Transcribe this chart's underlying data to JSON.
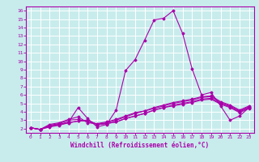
{
  "xlabel": "Windchill (Refroidissement éolien,°C)",
  "bg_color": "#c8ecec",
  "grid_color": "#ffffff",
  "line_color": "#aa00aa",
  "xlim": [
    -0.5,
    23.5
  ],
  "ylim": [
    1.5,
    16.5
  ],
  "xticks": [
    0,
    1,
    2,
    3,
    4,
    5,
    6,
    7,
    8,
    9,
    10,
    11,
    12,
    13,
    14,
    15,
    16,
    17,
    18,
    19,
    20,
    21,
    22,
    23
  ],
  "yticks": [
    2,
    3,
    4,
    5,
    6,
    7,
    8,
    9,
    10,
    11,
    12,
    13,
    14,
    15,
    16
  ],
  "lines": [
    {
      "x": [
        0,
        1,
        2,
        3,
        4,
        5,
        6,
        7,
        8,
        9,
        10,
        11,
        12,
        13,
        14,
        15,
        16,
        17,
        18,
        19,
        20,
        21,
        22,
        23
      ],
      "y": [
        2.1,
        1.9,
        2.3,
        2.5,
        2.8,
        4.5,
        3.2,
        2.2,
        2.5,
        4.2,
        8.9,
        10.2,
        12.5,
        14.9,
        15.1,
        16.0,
        13.3,
        9.1,
        6.0,
        6.3,
        4.7,
        3.0,
        3.5,
        4.5
      ]
    },
    {
      "x": [
        0,
        1,
        2,
        3,
        4,
        5,
        6,
        7,
        8,
        9,
        10,
        11,
        12,
        13,
        14,
        15,
        16,
        17,
        18,
        19,
        20,
        21,
        22,
        23
      ],
      "y": [
        2.1,
        1.9,
        2.3,
        2.5,
        2.7,
        2.9,
        3.0,
        2.5,
        2.6,
        2.8,
        3.2,
        3.5,
        3.8,
        4.2,
        4.5,
        4.8,
        5.0,
        5.2,
        5.5,
        5.6,
        5.0,
        4.6,
        4.0,
        4.5
      ]
    },
    {
      "x": [
        0,
        1,
        2,
        3,
        4,
        5,
        6,
        7,
        8,
        9,
        10,
        11,
        12,
        13,
        14,
        15,
        16,
        17,
        18,
        19,
        20,
        21,
        22,
        23
      ],
      "y": [
        2.1,
        1.9,
        2.2,
        2.4,
        2.7,
        2.9,
        3.0,
        2.5,
        2.6,
        2.8,
        3.2,
        3.5,
        3.8,
        4.2,
        4.5,
        4.7,
        4.9,
        5.1,
        5.4,
        5.5,
        4.9,
        4.5,
        3.9,
        4.4
      ]
    },
    {
      "x": [
        0,
        1,
        2,
        3,
        4,
        5,
        6,
        7,
        8,
        9,
        10,
        11,
        12,
        13,
        14,
        15,
        16,
        17,
        18,
        19,
        20,
        21,
        22,
        23
      ],
      "y": [
        2.1,
        1.9,
        2.4,
        2.6,
        3.0,
        3.1,
        2.8,
        2.5,
        2.7,
        3.0,
        3.4,
        3.8,
        4.1,
        4.4,
        4.7,
        5.0,
        5.2,
        5.4,
        5.7,
        5.8,
        5.1,
        4.7,
        4.1,
        4.6
      ]
    },
    {
      "x": [
        0,
        1,
        2,
        3,
        4,
        5,
        6,
        7,
        8,
        9,
        10,
        11,
        12,
        13,
        14,
        15,
        16,
        17,
        18,
        19,
        20,
        21,
        22,
        23
      ],
      "y": [
        2.1,
        1.9,
        2.5,
        2.7,
        3.1,
        3.4,
        2.7,
        2.6,
        2.8,
        3.1,
        3.5,
        3.9,
        4.1,
        4.5,
        4.8,
        5.1,
        5.3,
        5.5,
        5.8,
        5.9,
        5.2,
        4.8,
        4.2,
        4.7
      ]
    }
  ]
}
